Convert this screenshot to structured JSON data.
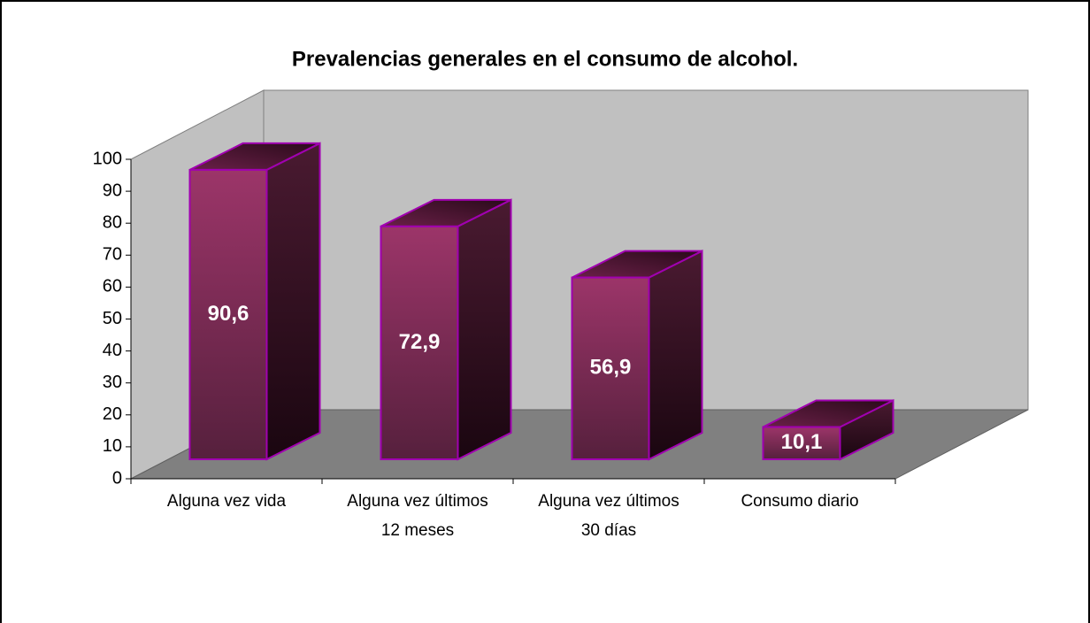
{
  "chart_data": {
    "type": "bar3d",
    "title": "Prevalencias generales en el consumo de alcohol.",
    "categories": [
      [
        "Alguna vez vida"
      ],
      [
        "Alguna vez últimos",
        "12 meses"
      ],
      [
        "Alguna vez últimos",
        "30 días"
      ],
      [
        "Consumo diario"
      ]
    ],
    "values": [
      90.6,
      72.9,
      56.9,
      10.1
    ],
    "value_labels": [
      "90,6",
      "72,9",
      "56,9",
      "10,1"
    ],
    "color": "#8e2f61",
    "ylim": [
      0,
      100
    ],
    "yticks": [
      0,
      10,
      20,
      30,
      40,
      50,
      60,
      70,
      80,
      90,
      100
    ],
    "grid": false
  }
}
